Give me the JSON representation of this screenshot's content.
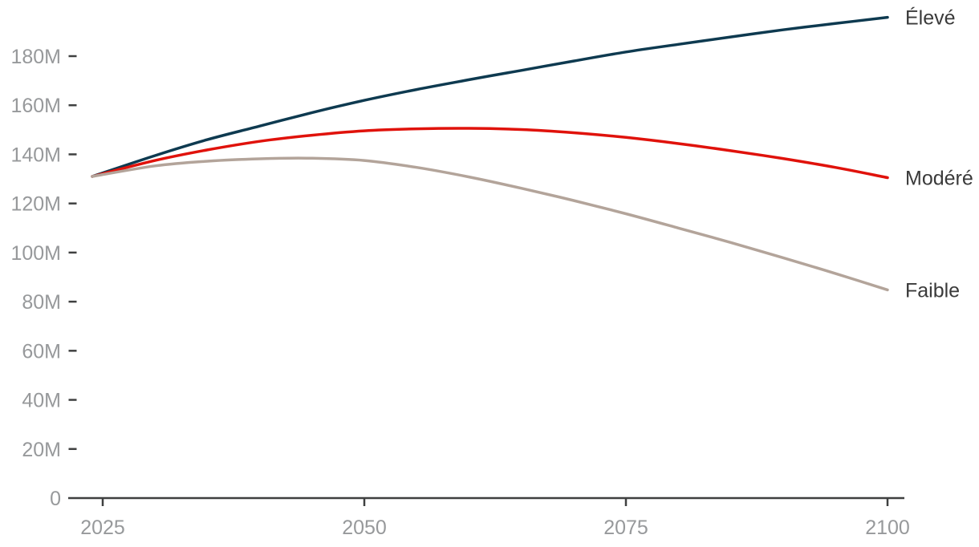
{
  "page": {
    "background": "#ffffff"
  },
  "chart_data": {
    "type": "line",
    "title": "",
    "xlabel": "",
    "ylabel": "",
    "unit": "M (millions)",
    "grid": false,
    "legend_position": "line-end-labels-right",
    "xlim": [
      2024,
      2100
    ],
    "ylim": [
      0,
      200
    ],
    "x": [
      2024,
      2030,
      2035,
      2040,
      2045,
      2050,
      2055,
      2060,
      2065,
      2070,
      2075,
      2080,
      2085,
      2090,
      2095,
      2100
    ],
    "series": [
      {
        "name": "Élevé",
        "color": "#0e3a50",
        "values": [
          131,
          139.5,
          146,
          151.5,
          157,
          162,
          166.4,
          170.4,
          174.2,
          178,
          181.7,
          184.8,
          187.8,
          190.7,
          193.3,
          195.8
        ]
      },
      {
        "name": "Modéré",
        "color": "#e0120b",
        "values": [
          131,
          137.5,
          141.8,
          145.3,
          147.8,
          149.6,
          150.4,
          150.6,
          150.1,
          148.8,
          146.9,
          144.4,
          141.5,
          138.3,
          134.7,
          130.5
        ]
      },
      {
        "name": "Faible",
        "color": "#b3a49a",
        "values": [
          131,
          135.3,
          137.2,
          138.2,
          138.4,
          137.5,
          134.7,
          130.8,
          126.2,
          121.2,
          115.8,
          110,
          104.1,
          97.9,
          91.5,
          84.8
        ]
      }
    ],
    "x_ticks": {
      "values": [
        2025,
        2050,
        2075,
        2100
      ],
      "labels": [
        "2025",
        "2050",
        "2075",
        "2100"
      ]
    },
    "y_ticks": {
      "values": [
        0,
        20,
        40,
        60,
        80,
        100,
        120,
        140,
        160,
        180
      ],
      "labels": [
        "0",
        "20M",
        "40M",
        "60M",
        "80M",
        "100M",
        "120M",
        "140M",
        "160M",
        "180M"
      ]
    },
    "styles": {
      "axis_color": "#3f4040",
      "tick_label_color": "#97999b",
      "series_label_color": "#3a3a3a",
      "line_width": 3.5,
      "tick_label_font_size": 25,
      "series_label_font_size": 25
    }
  }
}
